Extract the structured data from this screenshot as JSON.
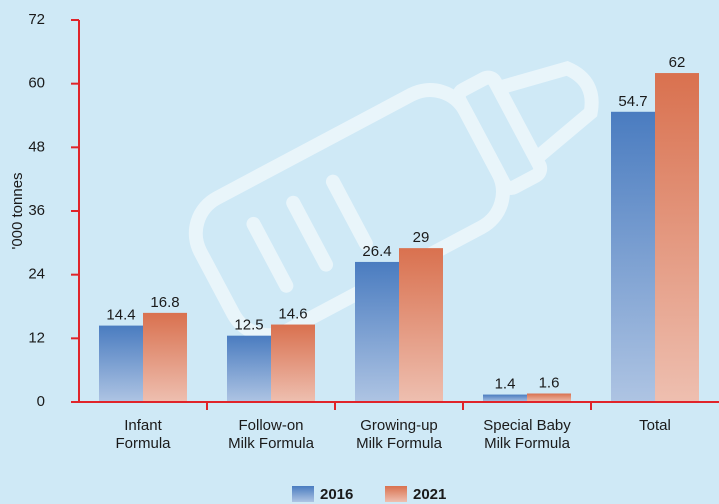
{
  "chart_data": {
    "type": "bar",
    "categories": [
      "Infant\nFormula",
      "Follow-on\nMilk Formula",
      "Growing-up\nMilk Formula",
      "Special Baby\nMilk Formula",
      "Total"
    ],
    "series": [
      {
        "name": "2016",
        "color": "#4a7cc0",
        "values": [
          14.4,
          12.5,
          26.4,
          1.4,
          54.7
        ]
      },
      {
        "name": "2021",
        "color": "#d9714f",
        "values": [
          16.8,
          14.6,
          29,
          1.6,
          62
        ]
      }
    ],
    "y_label": "'000 tonnes",
    "ylim": [
      0,
      72
    ],
    "yticks": [
      0,
      12,
      24,
      36,
      48,
      60,
      72
    ],
    "axis_color": "#e0242a"
  }
}
